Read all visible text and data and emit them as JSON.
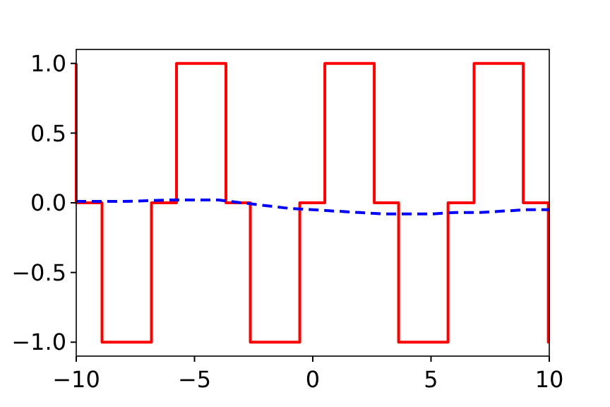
{
  "chart_data": {
    "type": "line",
    "xlim": [
      -10,
      10
    ],
    "ylim": [
      -1.1,
      1.1
    ],
    "xticks": [
      -10,
      -5,
      0,
      5,
      10
    ],
    "yticks": [
      {
        "value": -1,
        "label": "−1.0"
      },
      {
        "value": -0.5,
        "label": "−0.5"
      },
      {
        "value": 0,
        "label": "0.0"
      },
      {
        "value": 0.5,
        "label": "0.5"
      },
      {
        "value": 1,
        "label": "1.0"
      }
    ],
    "grid": false,
    "series": [
      {
        "color": "#ff0000",
        "line_style": "solid",
        "x": [
          -10,
          -10,
          -8.91,
          -8.91,
          -6.82,
          -6.82,
          -5.76,
          -5.76,
          -3.67,
          -3.67,
          -2.64,
          -2.64,
          -0.55,
          -0.55,
          0.51,
          0.51,
          2.6,
          2.6,
          3.63,
          3.63,
          5.72,
          5.72,
          6.82,
          6.82,
          8.9,
          8.9,
          9.96,
          9.96,
          10
        ],
        "values": [
          1,
          0,
          0,
          -1,
          -1,
          0,
          0,
          1,
          1,
          0,
          0,
          -1,
          -1,
          0,
          0,
          1,
          1,
          0,
          0,
          -1,
          -1,
          0,
          0,
          1,
          1,
          0,
          0,
          -1,
          -1
        ]
      },
      {
        "color": "#0000ff",
        "line_style": "dashed",
        "x": [
          -10,
          -8,
          -6,
          -5,
          -4,
          -3,
          -2,
          -1,
          0,
          1,
          2,
          3,
          4,
          5,
          6,
          7,
          8,
          9,
          10
        ],
        "values": [
          0.01,
          0.01,
          0.02,
          0.02,
          0.02,
          0.0,
          -0.02,
          -0.04,
          -0.05,
          -0.06,
          -0.07,
          -0.08,
          -0.08,
          -0.08,
          -0.07,
          -0.07,
          -0.06,
          -0.05,
          -0.05
        ]
      }
    ]
  }
}
